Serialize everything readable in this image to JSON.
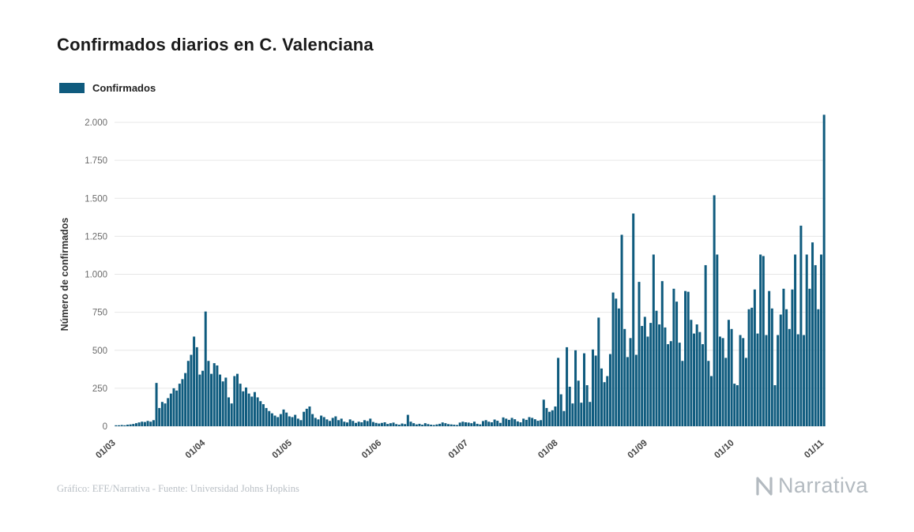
{
  "title": "Confirmados diarios en C. Valenciana",
  "legend": {
    "label": "Confirmados",
    "color": "#0f5b7e"
  },
  "footer": {
    "credit": "Gráfico: EFE/Narrativa - Fuente: Universidad Johns Hopkins",
    "brand": "Narrativa"
  },
  "chart_data": {
    "type": "bar",
    "title": "Confirmados diarios en C. Valenciana",
    "xlabel": "",
    "ylabel": "Número de confirmados",
    "ylim": [
      0,
      2000
    ],
    "yticks": [
      0,
      250,
      500,
      750,
      1000,
      1250,
      1500,
      1750,
      2000
    ],
    "ytick_labels": [
      "0",
      "250",
      "500",
      "750",
      "1.000",
      "1.250",
      "1.500",
      "1.750",
      "2.000"
    ],
    "x_tick_labels": [
      "01/03",
      "01/04",
      "01/05",
      "01/06",
      "01/07",
      "01/08",
      "01/09",
      "01/10",
      "01/11"
    ],
    "x_tick_indices": [
      0,
      31,
      61,
      92,
      122,
      153,
      184,
      214,
      245
    ],
    "grid": true,
    "legend_position": "top-left",
    "bar_color": "#0f5b7e",
    "series": [
      {
        "name": "Confirmados",
        "values": [
          3,
          5,
          8,
          6,
          10,
          12,
          15,
          20,
          25,
          30,
          28,
          35,
          30,
          40,
          285,
          120,
          160,
          150,
          185,
          215,
          250,
          235,
          280,
          310,
          350,
          430,
          470,
          590,
          520,
          340,
          365,
          755,
          430,
          345,
          415,
          400,
          340,
          295,
          320,
          190,
          150,
          330,
          345,
          280,
          230,
          255,
          215,
          195,
          225,
          190,
          165,
          145,
          120,
          100,
          85,
          70,
          60,
          80,
          110,
          90,
          65,
          60,
          75,
          50,
          40,
          95,
          115,
          130,
          80,
          55,
          45,
          70,
          60,
          45,
          35,
          55,
          65,
          40,
          50,
          30,
          25,
          45,
          35,
          22,
          30,
          26,
          40,
          34,
          50,
          28,
          22,
          18,
          22,
          26,
          15,
          20,
          24,
          14,
          10,
          18,
          14,
          75,
          30,
          20,
          12,
          16,
          10,
          20,
          14,
          10,
          8,
          12,
          16,
          25,
          20,
          14,
          12,
          10,
          8,
          24,
          30,
          26,
          24,
          20,
          30,
          16,
          12,
          34,
          40,
          30,
          26,
          44,
          36,
          22,
          58,
          50,
          42,
          55,
          46,
          32,
          26,
          50,
          42,
          60,
          55,
          46,
          36,
          40,
          175,
          120,
          95,
          105,
          130,
          450,
          210,
          100,
          520,
          260,
          150,
          500,
          300,
          155,
          480,
          270,
          160,
          505,
          465,
          715,
          380,
          290,
          330,
          475,
          880,
          840,
          775,
          1260,
          640,
          455,
          580,
          1400,
          470,
          950,
          660,
          720,
          590,
          680,
          1130,
          760,
          670,
          955,
          650,
          540,
          560,
          905,
          820,
          550,
          430,
          890,
          885,
          700,
          610,
          670,
          620,
          540,
          1060,
          430,
          330,
          1520,
          1130,
          590,
          580,
          450,
          700,
          640,
          280,
          270,
          600,
          580,
          450,
          770,
          780,
          900,
          610,
          1130,
          1120,
          600,
          890,
          775,
          270,
          600,
          735,
          905,
          770,
          640,
          900,
          1130,
          605,
          1320,
          600,
          1130,
          905,
          1210,
          1060,
          770,
          1130,
          2050
        ]
      }
    ]
  }
}
